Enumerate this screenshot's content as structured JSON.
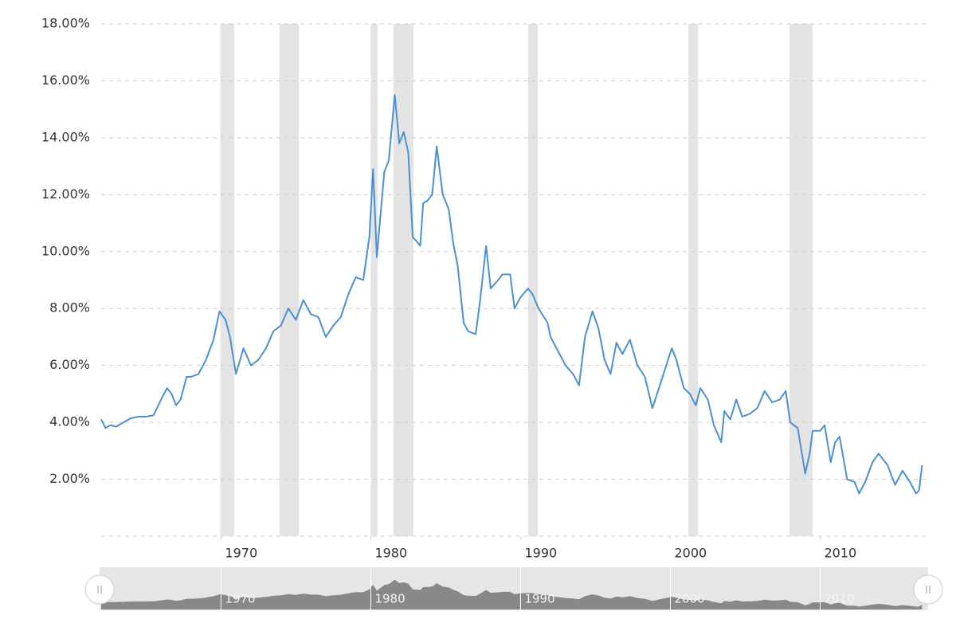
{
  "chart_data": {
    "type": "line",
    "x": [
      1962.0,
      1962.3,
      1962.6,
      1963.0,
      1963.5,
      1964.0,
      1964.5,
      1965.0,
      1965.5,
      1966.0,
      1966.4,
      1966.7,
      1967.0,
      1967.3,
      1967.7,
      1968.0,
      1968.5,
      1969.0,
      1969.5,
      1969.9,
      1970.3,
      1970.6,
      1971.0,
      1971.5,
      1972.0,
      1972.5,
      1973.0,
      1973.5,
      1974.0,
      1974.5,
      1975.0,
      1975.5,
      1976.0,
      1976.5,
      1977.0,
      1977.5,
      1978.0,
      1978.5,
      1979.0,
      1979.5,
      1979.9,
      1980.15,
      1980.4,
      1980.6,
      1980.9,
      1981.2,
      1981.6,
      1981.9,
      1982.2,
      1982.5,
      1982.8,
      1983.0,
      1983.3,
      1983.5,
      1983.8,
      1984.1,
      1984.4,
      1984.8,
      1985.2,
      1985.5,
      1985.8,
      1986.2,
      1986.5,
      1987.0,
      1987.3,
      1987.7,
      1988.0,
      1988.5,
      1988.8,
      1989.3,
      1989.6,
      1990.0,
      1990.5,
      1990.8,
      1991.2,
      1991.8,
      1992.0,
      1992.5,
      1993.0,
      1993.5,
      1993.9,
      1994.3,
      1994.8,
      1995.2,
      1995.6,
      1996.0,
      1996.4,
      1996.8,
      1997.3,
      1997.8,
      1998.3,
      1998.8,
      1999.3,
      1999.9,
      2000.1,
      2000.4,
      2000.9,
      2001.3,
      2001.7,
      2002.0,
      2002.5,
      2002.9,
      2003.4,
      2003.6,
      2004.0,
      2004.4,
      2004.8,
      2005.3,
      2005.8,
      2006.3,
      2006.8,
      2007.3,
      2007.7,
      2008.0,
      2008.5,
      2009.0,
      2009.3,
      2009.5,
      2010.0,
      2010.3,
      2010.7,
      2011.0,
      2011.3,
      2011.8,
      2012.3,
      2012.6,
      2013.0,
      2013.5,
      2013.9,
      2014.5,
      2015.0,
      2015.5,
      2016.0,
      2016.4,
      2016.6,
      2016.8
    ],
    "series": [
      {
        "color": "#4a90d2",
        "values": [
          4.1,
          3.8,
          3.9,
          3.85,
          4.0,
          4.15,
          4.2,
          4.2,
          4.25,
          4.8,
          5.2,
          5.0,
          4.6,
          4.8,
          5.6,
          5.6,
          5.7,
          6.2,
          6.9,
          7.9,
          7.6,
          7.0,
          5.7,
          6.6,
          6.0,
          6.2,
          6.6,
          7.2,
          7.4,
          8.0,
          7.6,
          8.3,
          7.8,
          7.7,
          7.0,
          7.4,
          7.7,
          8.5,
          9.1,
          9.0,
          10.5,
          12.9,
          9.8,
          11.0,
          12.8,
          13.2,
          15.5,
          13.8,
          14.2,
          13.5,
          10.5,
          10.4,
          10.2,
          11.7,
          11.8,
          12.0,
          13.7,
          12.0,
          11.5,
          10.3,
          9.5,
          7.5,
          7.2,
          7.1,
          8.3,
          10.2,
          8.7,
          9.0,
          9.2,
          9.2,
          8.0,
          8.4,
          8.7,
          8.5,
          8.0,
          7.5,
          7.0,
          6.5,
          6.0,
          5.7,
          5.3,
          7.0,
          7.9,
          7.3,
          6.2,
          5.7,
          6.8,
          6.4,
          6.9,
          6.0,
          5.6,
          4.5,
          5.3,
          6.3,
          6.6,
          6.2,
          5.2,
          5.0,
          4.6,
          5.2,
          4.8,
          3.9,
          3.3,
          4.4,
          4.1,
          4.8,
          4.2,
          4.3,
          4.5,
          5.1,
          4.7,
          4.8,
          5.1,
          4.0,
          3.8,
          2.2,
          2.9,
          3.7,
          3.7,
          3.9,
          2.6,
          3.3,
          3.5,
          2.0,
          1.9,
          1.5,
          1.9,
          2.6,
          2.9,
          2.5,
          1.8,
          2.3,
          1.9,
          1.5,
          1.6,
          2.5
        ]
      }
    ],
    "recessions": [
      [
        1969.95,
        1970.9
      ],
      [
        1973.9,
        1975.2
      ],
      [
        1980.0,
        1980.45
      ],
      [
        1981.5,
        1982.85
      ],
      [
        1990.5,
        1991.15
      ],
      [
        2001.2,
        2001.85
      ],
      [
        2007.95,
        2009.5
      ]
    ],
    "recession_color": "#e4e4e4",
    "xlim": [
      1962,
      2017.1
    ],
    "xticks": [
      1970,
      1980,
      1990,
      2000,
      2010
    ],
    "ylim": [
      0,
      18
    ],
    "yticks": [
      {
        "value": 2,
        "label": "2.00%"
      },
      {
        "value": 4,
        "label": "4.00%"
      },
      {
        "value": 6,
        "label": "6.00%"
      },
      {
        "value": 8,
        "label": "8.00%"
      },
      {
        "value": 10,
        "label": "10.00%"
      },
      {
        "value": 12,
        "label": "12.00%"
      },
      {
        "value": 14,
        "label": "14.00%"
      },
      {
        "value": 16,
        "label": "16.00%"
      },
      {
        "value": 18,
        "label": "18.00%"
      }
    ],
    "grid": true
  }
}
